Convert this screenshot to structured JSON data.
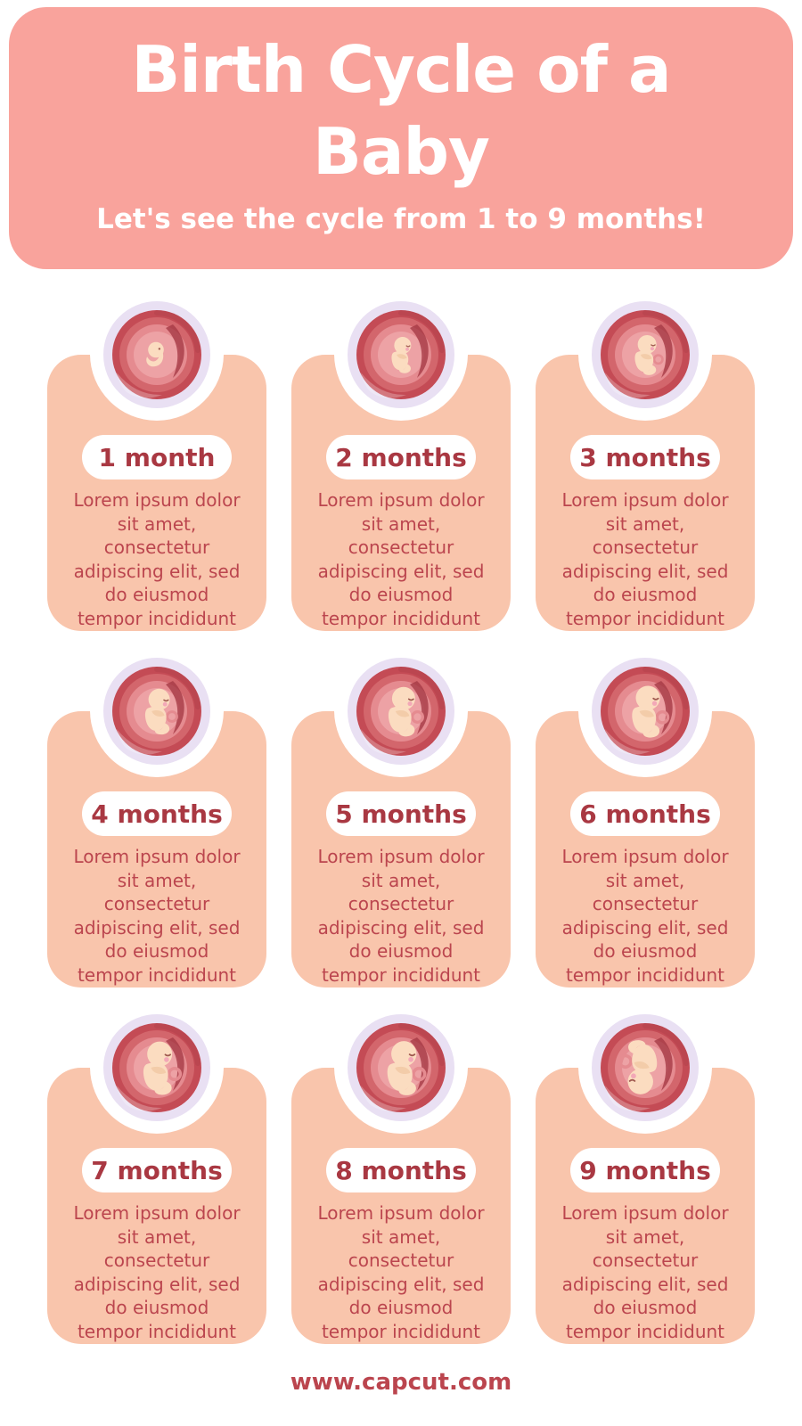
{
  "header": {
    "title_lines": [
      "Birth Cycle of a",
      "Baby"
    ],
    "subtitle": "Let's see the cycle from 1 to 9 months!"
  },
  "cards": [
    {
      "label": "1 month",
      "illustration": {
        "scale": 1.1,
        "rotate": 0,
        "embryo": true,
        "cord": false
      }
    },
    {
      "label": "2 months",
      "illustration": {
        "scale": 0.95,
        "rotate": 0,
        "embryo": false,
        "cord": false
      }
    },
    {
      "label": "3 months",
      "illustration": {
        "scale": 1.05,
        "rotate": 0,
        "embryo": false,
        "cord": true
      }
    },
    {
      "label": "4 months",
      "illustration": {
        "scale": 1.2,
        "rotate": 0,
        "embryo": false,
        "cord": true
      }
    },
    {
      "label": "5 months",
      "illustration": {
        "scale": 1.3,
        "rotate": 0,
        "embryo": false,
        "cord": true
      }
    },
    {
      "label": "6 months",
      "illustration": {
        "scale": 1.36,
        "rotate": 0,
        "embryo": false,
        "cord": true
      }
    },
    {
      "label": "7 months",
      "illustration": {
        "scale": 1.4,
        "rotate": 0,
        "embryo": false,
        "cord": true
      }
    },
    {
      "label": "8 months",
      "illustration": {
        "scale": 1.42,
        "rotate": 0,
        "embryo": false,
        "cord": true
      }
    },
    {
      "label": "9 months",
      "illustration": {
        "scale": 1.42,
        "rotate": 180,
        "embryo": false,
        "cord": true
      }
    }
  ],
  "card_body_lines": [
    "Lorem ipsum dolor",
    "sit amet,",
    "consectetur",
    "adipiscing elit, sed",
    "do eiusmod",
    "tempor incididunt"
  ],
  "card_body_text": "Lorem ipsum dolor sit amet, consectetur adipiscing elit, sed do eiusmod tempor incididunt",
  "footer": {
    "url": "www.capcut.com"
  },
  "icons": {
    "card_illustration": "fetus-in-womb-icon"
  },
  "colors": {
    "header_bg": "#F9A39C",
    "card_bg": "#F9C5AC",
    "heading_text": "#FFFFFF",
    "month_text": "#A93842",
    "body_text": "#BB454E",
    "ring": "#E9E0F3",
    "womb_outer": "#C44B55",
    "womb_mid": "#D3666C",
    "womb_light": "#E58B90",
    "womb_center": "#EDA2A5",
    "womb_swirl": "#A63B46",
    "skin": "#FBDCC0",
    "skin_shade": "#F3CCA9",
    "cheek": "#F3A8B7",
    "face_line": "#A05A50"
  }
}
